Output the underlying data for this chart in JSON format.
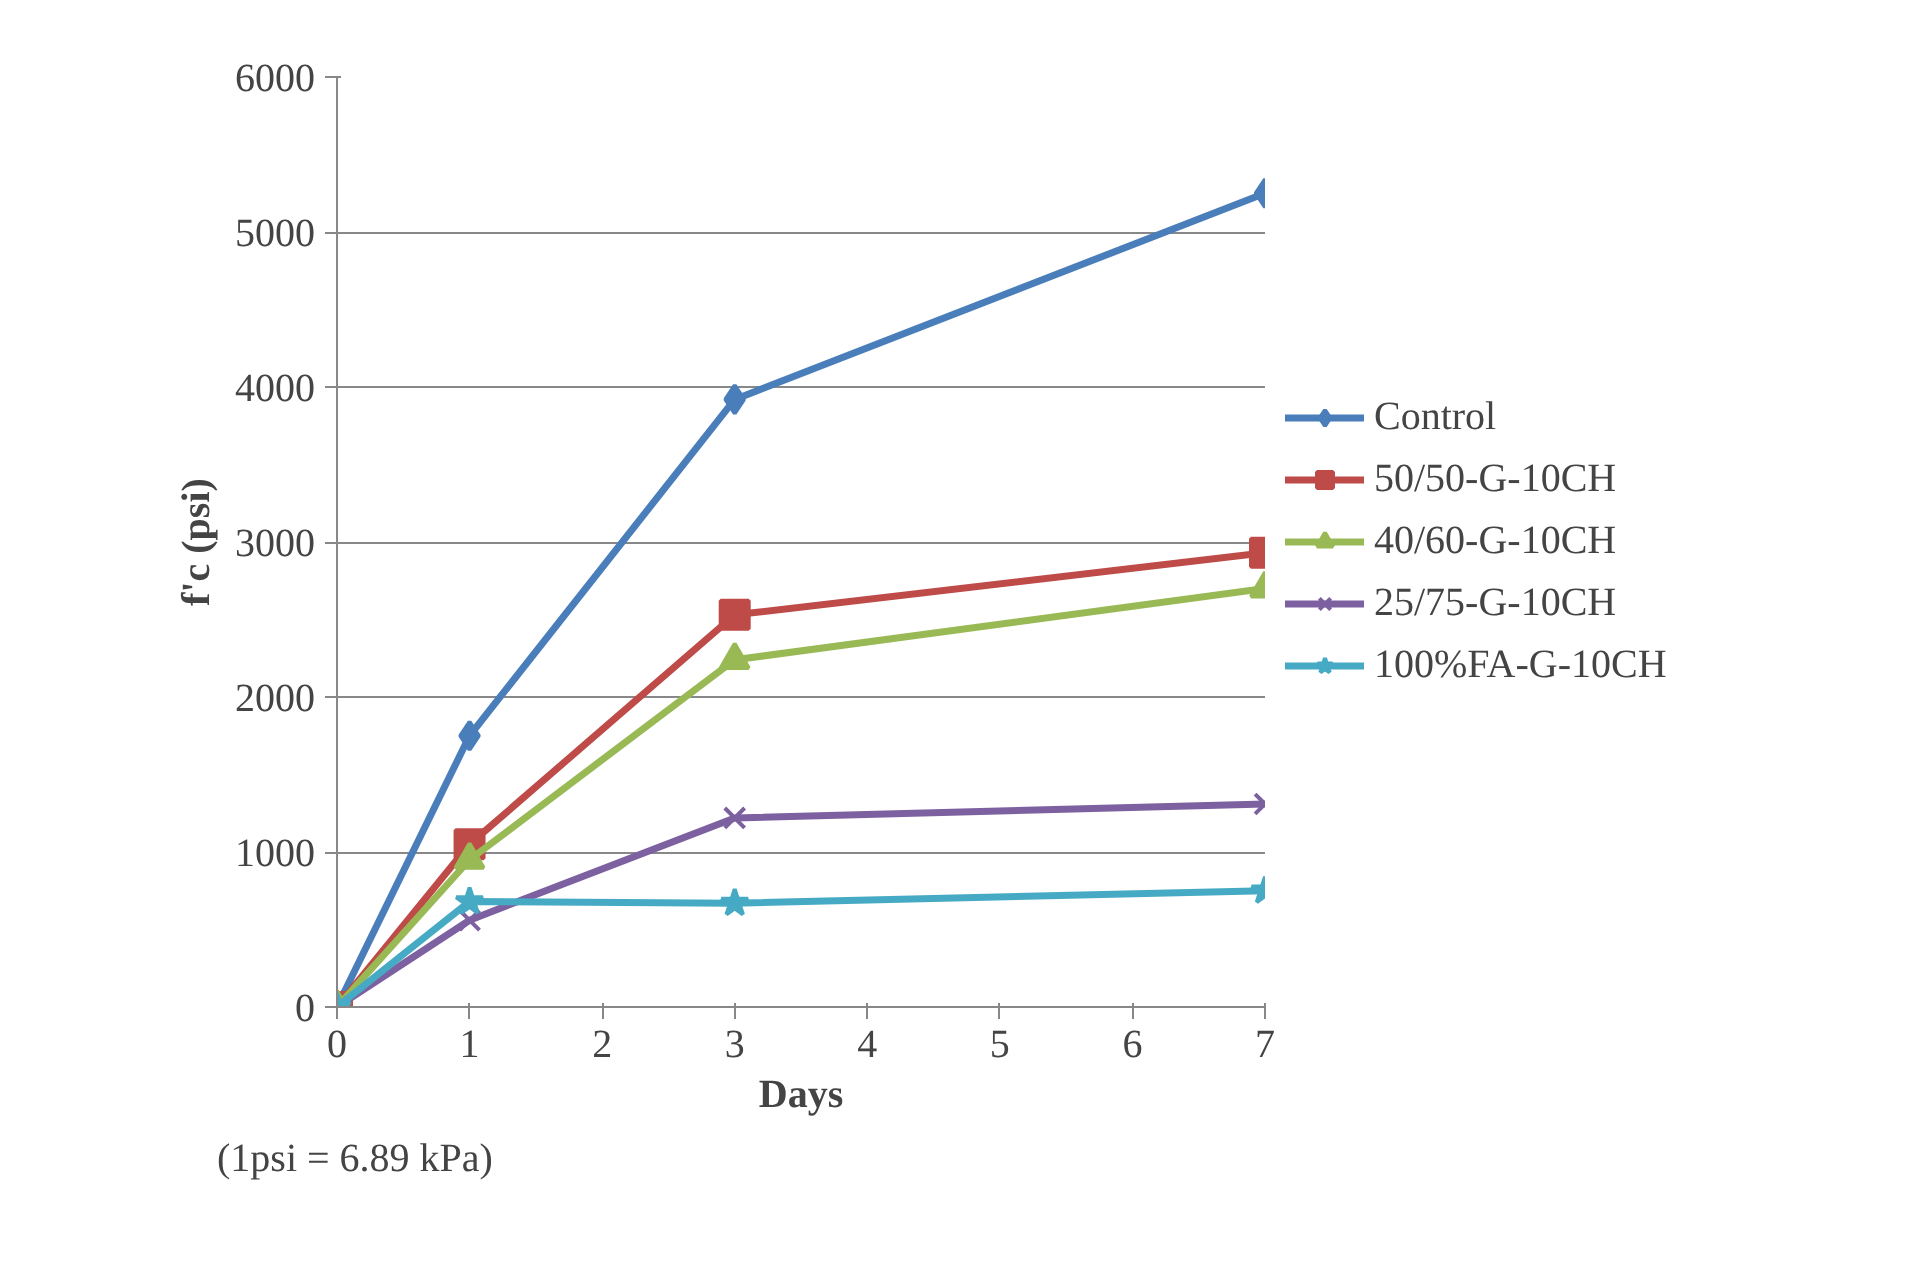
{
  "chart_data": {
    "type": "line",
    "xlabel": "Days",
    "ylabel": "f'c (psi)",
    "x": [
      0,
      1,
      3,
      7
    ],
    "series": [
      {
        "name": "Control",
        "color": "#4a7ebb",
        "marker": "diamond",
        "values": [
          0,
          1750,
          3920,
          5250
        ]
      },
      {
        "name": "50/50-G-10CH",
        "color": "#be4b48",
        "marker": "square",
        "values": [
          0,
          1050,
          2530,
          2930
        ]
      },
      {
        "name": "40/60-G-10CH",
        "color": "#98b954",
        "marker": "triangle",
        "values": [
          0,
          950,
          2240,
          2700
        ]
      },
      {
        "name": "25/75-G-10CH",
        "color": "#7d60a0",
        "marker": "cross",
        "values": [
          0,
          560,
          1220,
          1310
        ]
      },
      {
        "name": "100%FA-G-10CH",
        "color": "#46aac5",
        "marker": "star",
        "values": [
          0,
          680,
          670,
          750
        ]
      }
    ],
    "xlim": [
      0,
      7
    ],
    "xticks": [
      0,
      1,
      2,
      3,
      4,
      5,
      6,
      7
    ],
    "ylim": [
      0,
      6000
    ],
    "yticks": [
      0,
      1000,
      2000,
      3000,
      4000,
      5000,
      6000
    ],
    "grid": "y",
    "legend": "right",
    "line_style": "solid",
    "annotations": [
      "(1psi = 6.89 kPa)"
    ]
  }
}
